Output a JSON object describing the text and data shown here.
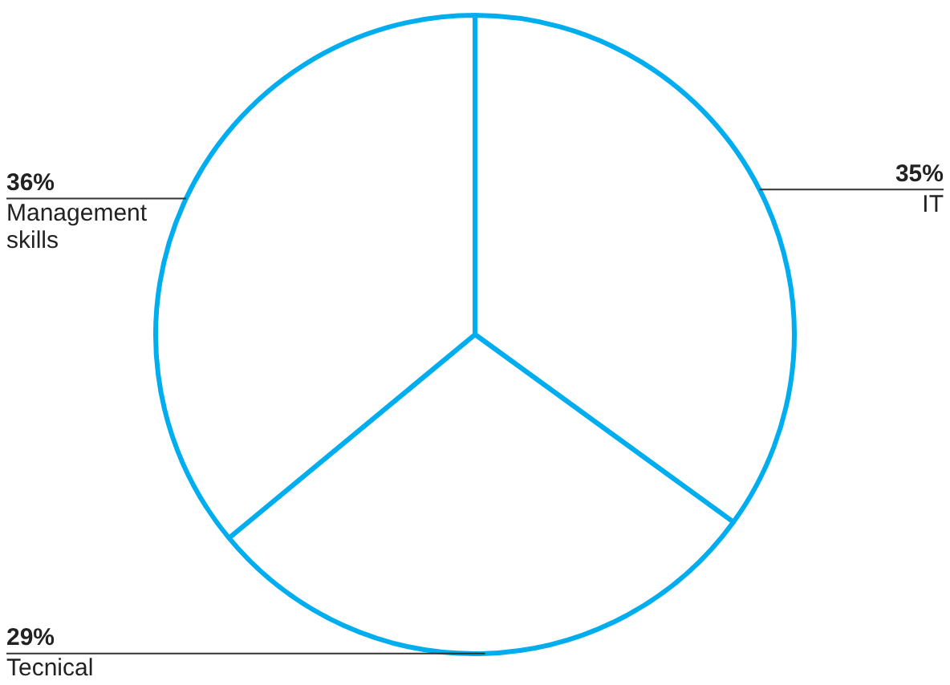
{
  "chart_data": {
    "type": "pie",
    "categories": [
      "IT",
      "Tecnical",
      "Management skills"
    ],
    "values": [
      35,
      29,
      36
    ],
    "value_labels": [
      "35%",
      "29%",
      "36%"
    ],
    "colors": [
      "#ffffff",
      "#ffffff",
      "#ffffff"
    ],
    "color": "#00aeef",
    "legend": false
  }
}
